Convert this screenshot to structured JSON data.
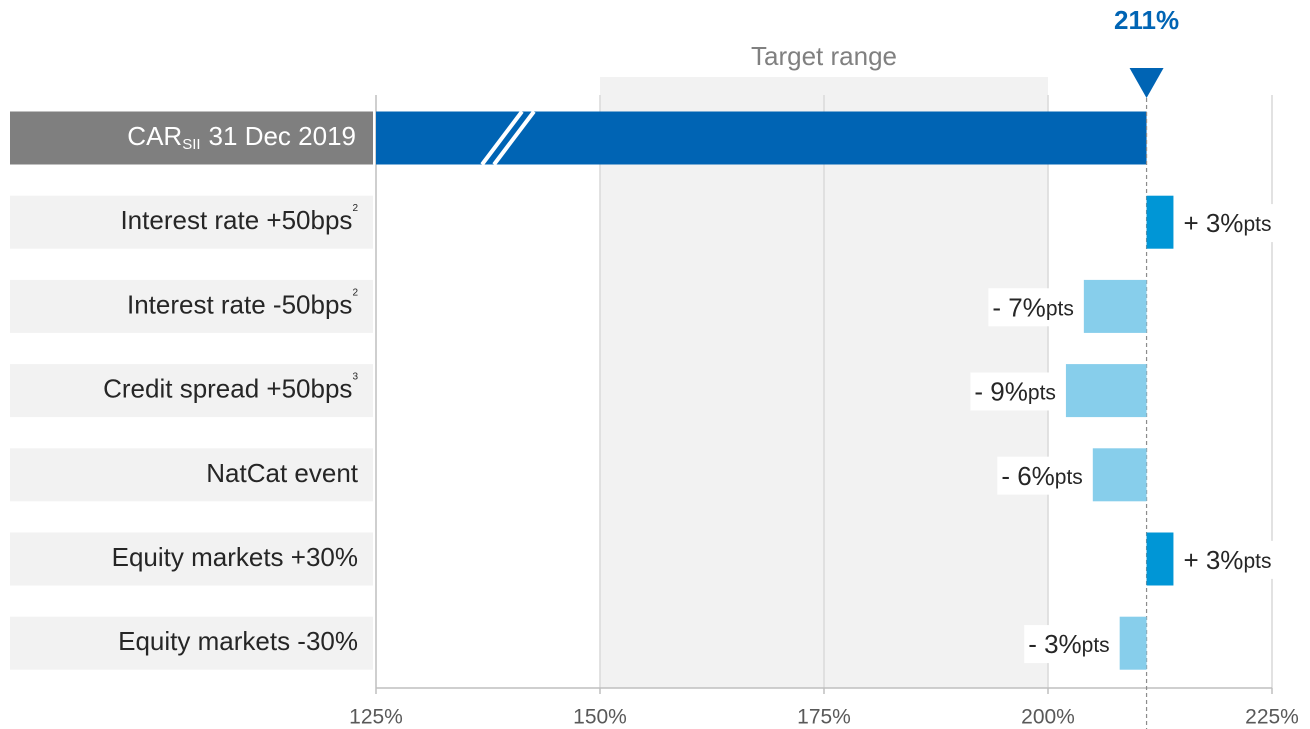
{
  "chart_data": {
    "type": "bar",
    "orientation": "horizontal",
    "base": {
      "label": "CAR",
      "label_sub": "SII",
      "label_rest": "31 Dec 2019",
      "value": 211,
      "value_label": "211%",
      "color": "#0064b4"
    },
    "target_range": {
      "label": "Target range",
      "from": 150,
      "to": 200
    },
    "categories": [
      "Interest rate +50bps",
      "Interest rate -50bps",
      "Credit spread +50bps",
      "NatCat event",
      "Equity markets +30%",
      "Equity markets -30%"
    ],
    "category_notes": [
      "2",
      "2",
      "3",
      null,
      null,
      null
    ],
    "values": [
      3,
      -7,
      -9,
      -6,
      3,
      -3
    ],
    "value_labels": [
      "+ 3%",
      "- 7%",
      "- 9%",
      "- 6%",
      "+ 3%",
      "- 3%"
    ],
    "value_unit": "pts",
    "positive_color": "#0096d6",
    "negative_color": "#87ceeb",
    "xlim": [
      125,
      225
    ],
    "xticks": [
      {
        "value": 125,
        "label": "125%"
      },
      {
        "value": 150,
        "label": "150%"
      },
      {
        "value": 175,
        "label": "175%"
      },
      {
        "value": 200,
        "label": "200%"
      },
      {
        "value": 225,
        "label": "225%"
      }
    ],
    "grid": true
  }
}
